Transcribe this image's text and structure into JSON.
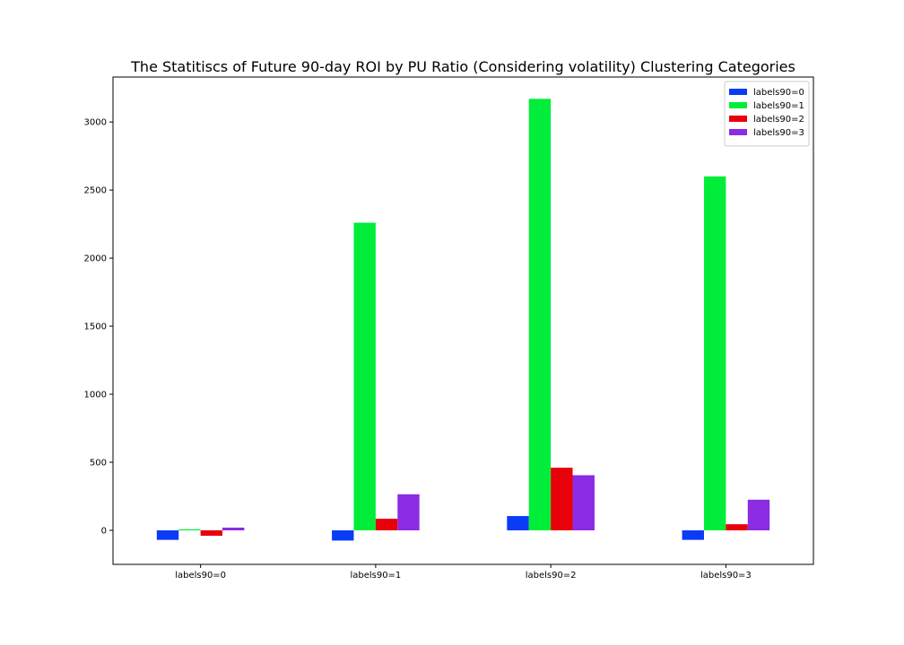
{
  "chart_data": {
    "type": "bar",
    "title": "The Statitiscs of Future 90-day ROI by PU Ratio (Considering volatility) Clustering Categories",
    "xlabel": "",
    "ylabel": "",
    "categories": [
      "labels90=0",
      "labels90=1",
      "labels90=2",
      "labels90=3"
    ],
    "series": [
      {
        "name": "labels90=0",
        "color": "#0a3cf5",
        "values": [
          -70,
          -75,
          105,
          -70
        ]
      },
      {
        "name": "labels90=1",
        "color": "#00ee3a",
        "values": [
          8,
          2260,
          3170,
          2600
        ]
      },
      {
        "name": "labels90=2",
        "color": "#e8000b",
        "values": [
          -40,
          85,
          460,
          45
        ]
      },
      {
        "name": "labels90=3",
        "color": "#8b2be2",
        "values": [
          20,
          265,
          405,
          225
        ]
      }
    ],
    "yticks": [
      0,
      500,
      1000,
      1500,
      2000,
      2500,
      3000
    ],
    "ylim": [
      -250,
      3330
    ],
    "grid": false,
    "legend_position": "top-right"
  }
}
